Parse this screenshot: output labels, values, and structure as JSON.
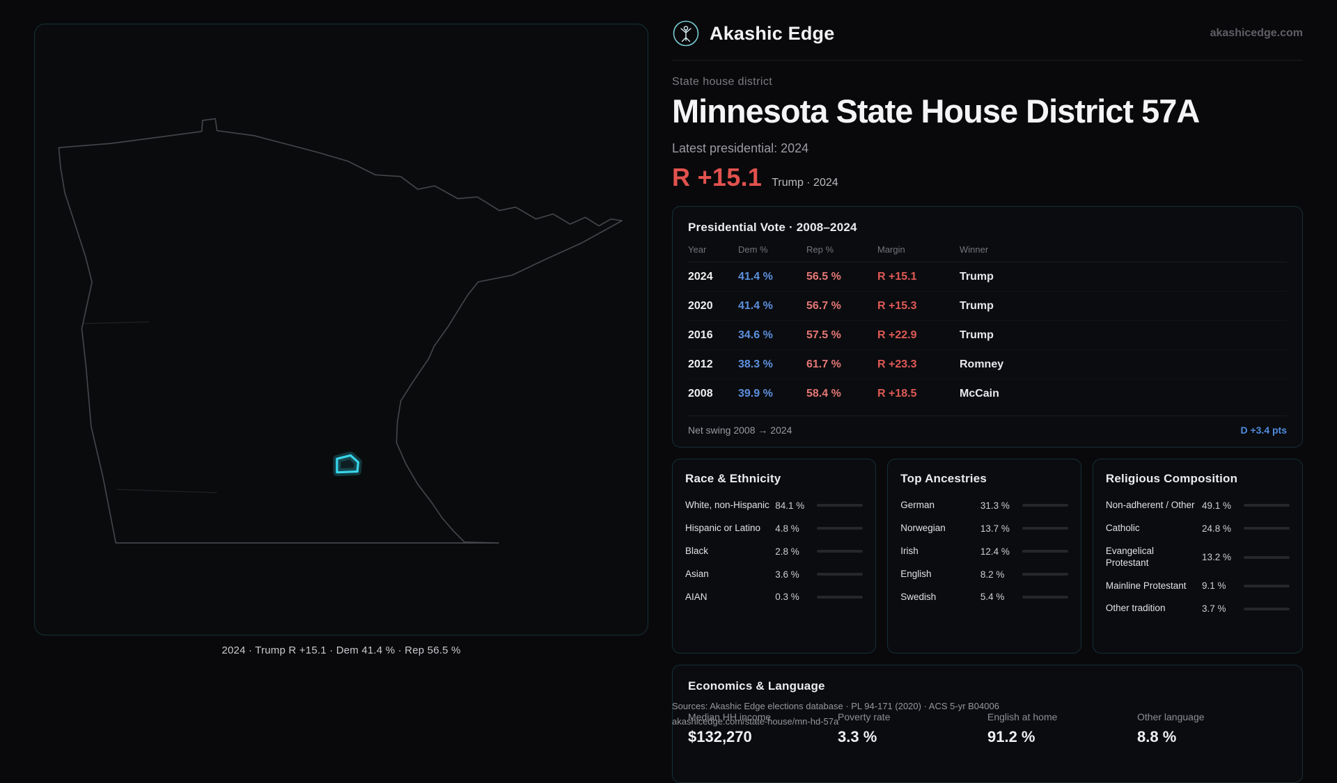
{
  "brand": {
    "name": "Akashic Edge",
    "url": "akashicedge.com"
  },
  "map": {
    "caption": "2024 · Trump R +15.1 · Dem 41.4 % · Rep 56.5 %",
    "accent_color": "#38d6eb",
    "outline_color": "#43434a"
  },
  "header": {
    "kicker": "State house district",
    "title": "Minnesota State House District 57A",
    "latest_label": "Latest presidential: 2024",
    "margin": "R +15.1",
    "margin_note": "Trump · 2024",
    "margin_color": "#e2524e"
  },
  "presidential": {
    "title": "Presidential Vote · 2008–2024",
    "columns": {
      "year": "Year",
      "dem": "Dem %",
      "rep": "Rep %",
      "margin": "Margin",
      "winner": "Winner"
    },
    "rows": [
      {
        "year": "2024",
        "dem": "41.4 %",
        "rep": "56.5 %",
        "margin": "R +15.1",
        "winner": "Trump"
      },
      {
        "year": "2020",
        "dem": "41.4 %",
        "rep": "56.7 %",
        "margin": "R +15.3",
        "winner": "Trump"
      },
      {
        "year": "2016",
        "dem": "34.6 %",
        "rep": "57.5 %",
        "margin": "R +22.9",
        "winner": "Trump"
      },
      {
        "year": "2012",
        "dem": "38.3 %",
        "rep": "61.7 %",
        "margin": "R +23.3",
        "winner": "Romney"
      },
      {
        "year": "2008",
        "dem": "39.9 %",
        "rep": "58.4 %",
        "margin": "R +18.5",
        "winner": "McCain"
      }
    ],
    "net_swing_label": "Net swing 2008 → 2024",
    "net_swing_value": "D +3.4 pts",
    "dem_color": "#5c90de",
    "rep_color": "#e57876"
  },
  "race": {
    "title": "Race & Ethnicity",
    "rows": [
      {
        "label": "White, non-Hispanic",
        "value": "84.1 %",
        "pct": 84.1,
        "color": "#c4c4cf"
      },
      {
        "label": "Hispanic or Latino",
        "value": "4.8 %",
        "pct": 4.8,
        "color": "#e5a33c"
      },
      {
        "label": "Black",
        "value": "2.8 %",
        "pct": 2.8,
        "color": "#5b8fdd"
      },
      {
        "label": "Asian",
        "value": "3.6 %",
        "pct": 3.6,
        "color": "#3fbf8f"
      },
      {
        "label": "AIAN",
        "value": "0.3 %",
        "pct": 0.3,
        "color": "#e0784a"
      }
    ]
  },
  "ancestries": {
    "title": "Top Ancestries",
    "rows": [
      {
        "label": "German",
        "value": "31.3 %",
        "pct": 31.3,
        "color": "#a9a9b2"
      },
      {
        "label": "Norwegian",
        "value": "13.7 %",
        "pct": 13.7,
        "color": "#a9a9b2"
      },
      {
        "label": "Irish",
        "value": "12.4 %",
        "pct": 12.4,
        "color": "#a9a9b2"
      },
      {
        "label": "English",
        "value": "8.2 %",
        "pct": 8.2,
        "color": "#a9a9b2"
      },
      {
        "label": "Swedish",
        "value": "5.4 %",
        "pct": 5.4,
        "color": "#a9a9b2"
      }
    ]
  },
  "religion": {
    "title": "Religious Composition",
    "rows": [
      {
        "label": "Non-adherent / Other",
        "value": "49.1 %",
        "pct": 49.1,
        "color": "#b9b9c2"
      },
      {
        "label": "Catholic",
        "value": "24.8 %",
        "pct": 24.8,
        "color": "#e6b93c"
      },
      {
        "label": "Evangelical Protestant",
        "value": "13.2 %",
        "pct": 13.2,
        "color": "#e57373"
      },
      {
        "label": "Mainline Protestant",
        "value": "9.1 %",
        "pct": 9.1,
        "color": "#5b8fdd"
      },
      {
        "label": "Other tradition",
        "value": "3.7 %",
        "pct": 3.7,
        "color": "#9a9aa2"
      }
    ]
  },
  "economics": {
    "title": "Economics & Language",
    "stats": [
      {
        "label": "Median HH income",
        "value": "$132,270"
      },
      {
        "label": "Poverty rate",
        "value": "3.3 %"
      },
      {
        "label": "English at home",
        "value": "91.2 %"
      },
      {
        "label": "Other language",
        "value": "8.8 %"
      }
    ]
  },
  "footer": {
    "sources": "Sources: Akashic Edge elections database · PL 94-171 (2020) · ACS 5-yr B04006",
    "permalink": "akashicedge.com/state-house/mn-hd-57a"
  }
}
